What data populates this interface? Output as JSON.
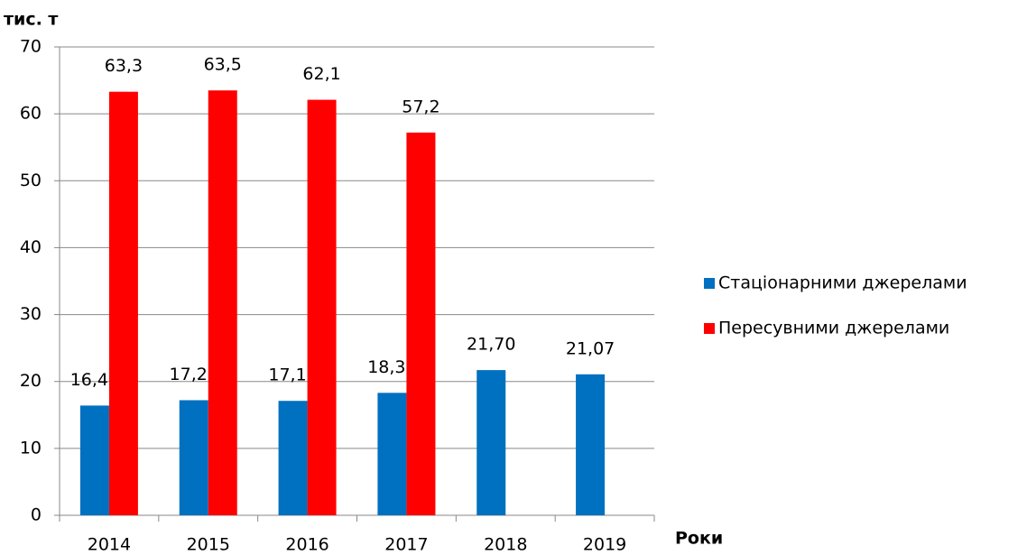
{
  "chart_data": {
    "type": "bar",
    "y_label": "тис. т",
    "x_label": "Роки",
    "categories": [
      "2014",
      "2015",
      "2016",
      "2017",
      "2018",
      "2019"
    ],
    "series": [
      {
        "name": "Стаціонарними джерелами",
        "color": "#0070c0",
        "values": [
          16.4,
          17.2,
          17.1,
          18.3,
          21.7,
          21.07
        ],
        "value_labels": [
          "16,40",
          "17,20",
          "17,10",
          "18,30",
          "21,70",
          "21,07"
        ]
      },
      {
        "name": "Пересувними джерелами",
        "color": "#ff0000",
        "values": [
          63.3,
          63.5,
          62.1,
          57.2,
          null,
          null
        ],
        "value_labels": [
          "63,3",
          "63,5",
          "62,1",
          "57,2",
          null,
          null
        ]
      }
    ],
    "ylim": [
      0,
      70
    ],
    "yticks": [
      0,
      10,
      20,
      30,
      40,
      50,
      60,
      70
    ],
    "grid": true,
    "legend": "right"
  }
}
